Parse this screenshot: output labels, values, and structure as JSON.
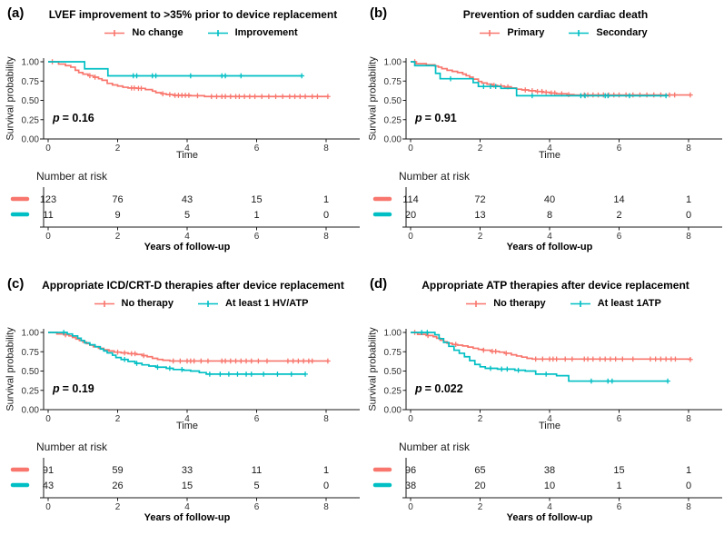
{
  "figure": {
    "background": "#ffffff",
    "axis_color": "#1a1a1a",
    "tick_text_color": "#333333"
  },
  "chart_data": [
    {
      "type": "line",
      "subtype": "kaplan-meier-survival",
      "tag": "(a)",
      "title": "LVEF improvement to >35% prior to device replacement",
      "p_label": "p",
      "p_value": "= 0.16",
      "xlabel": "Time",
      "ylabel": "Survival probability",
      "risk_header": "Number at risk",
      "risk_xlabel": "Years of follow-up",
      "x_ticks": [
        0,
        2,
        4,
        6,
        8
      ],
      "y_ticks": [
        1,
        0.75,
        0.5,
        0.25,
        0
      ],
      "xlim": [
        0,
        8.3
      ],
      "ylim": [
        0,
        1
      ],
      "series": [
        {
          "name": "No change",
          "color": "#F8766D",
          "steps": [
            [
              0,
              1
            ],
            [
              0.3,
              0.97
            ],
            [
              0.5,
              0.95
            ],
            [
              0.65,
              0.93
            ],
            [
              0.78,
              0.89
            ],
            [
              0.88,
              0.86
            ],
            [
              1.0,
              0.84
            ],
            [
              1.15,
              0.82
            ],
            [
              1.3,
              0.8
            ],
            [
              1.45,
              0.78
            ],
            [
              1.55,
              0.76
            ],
            [
              1.7,
              0.72
            ],
            [
              1.85,
              0.7
            ],
            [
              2.0,
              0.685
            ],
            [
              2.15,
              0.67
            ],
            [
              2.3,
              0.66
            ],
            [
              2.55,
              0.655
            ],
            [
              2.8,
              0.64
            ],
            [
              3.0,
              0.62
            ],
            [
              3.1,
              0.6
            ],
            [
              3.25,
              0.585
            ],
            [
              3.4,
              0.575
            ],
            [
              3.6,
              0.565
            ],
            [
              4.1,
              0.56
            ],
            [
              4.5,
              0.55
            ],
            [
              8.05,
              0.55
            ]
          ],
          "censors": [
            0.12,
            1.2,
            1.35,
            2.4,
            2.48,
            2.6,
            2.68,
            3.3,
            3.5,
            3.65,
            3.75,
            3.85,
            3.95,
            4.05,
            4.3,
            4.7,
            4.85,
            5.0,
            5.1,
            5.25,
            5.4,
            5.5,
            5.65,
            5.8,
            5.95,
            6.15,
            6.35,
            6.55,
            6.75,
            6.95,
            7.1,
            7.25,
            7.4,
            7.6,
            7.75,
            8.05
          ],
          "number_at_risk": [
            123,
            76,
            43,
            15,
            1
          ]
        },
        {
          "name": "Improvement",
          "color": "#00BFC4",
          "steps": [
            [
              0,
              1
            ],
            [
              1.05,
              0.909
            ],
            [
              1.72,
              0.818
            ],
            [
              7.3,
              0.818
            ]
          ],
          "censors": [
            2.45,
            2.55,
            3.0,
            3.1,
            4.1,
            5.0,
            5.1,
            5.55,
            7.3
          ],
          "number_at_risk": [
            11,
            9,
            5,
            1,
            0
          ]
        }
      ]
    },
    {
      "type": "line",
      "subtype": "kaplan-meier-survival",
      "tag": "(b)",
      "title": "Prevention of sudden cardiac death",
      "p_label": "p",
      "p_value": "= 0.91",
      "xlabel": "Time",
      "ylabel": "Survival probability",
      "risk_header": "Number at risk",
      "risk_xlabel": "Years of follow-up",
      "x_ticks": [
        0,
        2,
        4,
        6,
        8
      ],
      "y_ticks": [
        1,
        0.75,
        0.5,
        0.25,
        0
      ],
      "xlim": [
        0,
        8.3
      ],
      "ylim": [
        0,
        1
      ],
      "series": [
        {
          "name": "Primary",
          "color": "#F8766D",
          "steps": [
            [
              0,
              1
            ],
            [
              0.15,
              0.975
            ],
            [
              0.45,
              0.96
            ],
            [
              0.7,
              0.945
            ],
            [
              0.8,
              0.93
            ],
            [
              0.9,
              0.91
            ],
            [
              1.05,
              0.89
            ],
            [
              1.2,
              0.875
            ],
            [
              1.35,
              0.86
            ],
            [
              1.5,
              0.84
            ],
            [
              1.6,
              0.82
            ],
            [
              1.7,
              0.8
            ],
            [
              1.8,
              0.775
            ],
            [
              1.95,
              0.745
            ],
            [
              2.05,
              0.725
            ],
            [
              2.2,
              0.71
            ],
            [
              2.35,
              0.695
            ],
            [
              2.5,
              0.685
            ],
            [
              2.7,
              0.675
            ],
            [
              2.9,
              0.66
            ],
            [
              3.05,
              0.645
            ],
            [
              3.2,
              0.635
            ],
            [
              3.4,
              0.625
            ],
            [
              3.6,
              0.615
            ],
            [
              3.8,
              0.605
            ],
            [
              4.0,
              0.595
            ],
            [
              4.2,
              0.585
            ],
            [
              4.5,
              0.575
            ],
            [
              4.7,
              0.57
            ],
            [
              8.05,
              0.57
            ]
          ],
          "censors": [
            0.12,
            2.4,
            2.6,
            2.8,
            3.3,
            3.5,
            3.65,
            3.78,
            3.9,
            4.05,
            4.15,
            4.35,
            4.55,
            5.0,
            5.1,
            5.25,
            5.4,
            5.55,
            5.7,
            5.85,
            6.0,
            6.2,
            6.4,
            6.6,
            6.8,
            7.0,
            7.2,
            7.45,
            7.6,
            8.05
          ],
          "number_at_risk": [
            114,
            72,
            40,
            14,
            1
          ]
        },
        {
          "name": "Secondary",
          "color": "#00BFC4",
          "steps": [
            [
              0,
              1
            ],
            [
              0.12,
              0.95
            ],
            [
              0.72,
              0.85
            ],
            [
              0.85,
              0.78
            ],
            [
              1.8,
              0.73
            ],
            [
              1.95,
              0.68
            ],
            [
              2.6,
              0.655
            ],
            [
              3.05,
              0.56
            ],
            [
              7.35,
              0.56
            ]
          ],
          "censors": [
            1.15,
            2.1,
            2.3,
            2.45,
            3.5,
            4.9,
            5.02,
            5.6,
            5.68,
            6.3,
            7.35
          ],
          "number_at_risk": [
            20,
            13,
            8,
            2,
            0
          ]
        }
      ]
    },
    {
      "type": "line",
      "subtype": "kaplan-meier-survival",
      "tag": "(c)",
      "title": "Appropriate ICD/CRT-D therapies after device replacement",
      "p_label": "p",
      "p_value": "= 0.19",
      "xlabel": "Time",
      "ylabel": "Survival probability",
      "risk_header": "Number at risk",
      "risk_xlabel": "Years of follow-up",
      "x_ticks": [
        0,
        2,
        4,
        6,
        8
      ],
      "y_ticks": [
        1,
        0.75,
        0.5,
        0.25,
        0
      ],
      "xlim": [
        0,
        8.3
      ],
      "ylim": [
        0,
        1
      ],
      "series": [
        {
          "name": "No therapy",
          "color": "#F8766D",
          "steps": [
            [
              0,
              1
            ],
            [
              0.25,
              0.98
            ],
            [
              0.45,
              0.97
            ],
            [
              0.6,
              0.955
            ],
            [
              0.7,
              0.935
            ],
            [
              0.8,
              0.915
            ],
            [
              0.9,
              0.895
            ],
            [
              1.0,
              0.875
            ],
            [
              1.1,
              0.855
            ],
            [
              1.2,
              0.835
            ],
            [
              1.3,
              0.815
            ],
            [
              1.45,
              0.795
            ],
            [
              1.6,
              0.775
            ],
            [
              1.75,
              0.76
            ],
            [
              1.9,
              0.745
            ],
            [
              2.1,
              0.735
            ],
            [
              2.3,
              0.725
            ],
            [
              2.55,
              0.715
            ],
            [
              2.7,
              0.7
            ],
            [
              2.85,
              0.685
            ],
            [
              3.0,
              0.665
            ],
            [
              3.15,
              0.65
            ],
            [
              3.3,
              0.64
            ],
            [
              3.5,
              0.63
            ],
            [
              8.05,
              0.63
            ]
          ],
          "censors": [
            0.5,
            2.0,
            2.2,
            2.4,
            2.5,
            2.75,
            3.6,
            3.8,
            4.0,
            4.1,
            4.2,
            4.4,
            4.6,
            5.0,
            5.1,
            5.25,
            5.4,
            5.55,
            5.7,
            5.85,
            6.05,
            6.3,
            6.9,
            7.05,
            7.2,
            7.35,
            7.5,
            7.6,
            8.05
          ],
          "number_at_risk": [
            91,
            59,
            33,
            11,
            1
          ]
        },
        {
          "name": "At least 1 HV/ATP",
          "color": "#00BFC4",
          "steps": [
            [
              0,
              1
            ],
            [
              0.55,
              0.98
            ],
            [
              0.7,
              0.955
            ],
            [
              0.85,
              0.925
            ],
            [
              0.95,
              0.895
            ],
            [
              1.05,
              0.865
            ],
            [
              1.2,
              0.84
            ],
            [
              1.35,
              0.815
            ],
            [
              1.5,
              0.785
            ],
            [
              1.6,
              0.76
            ],
            [
              1.7,
              0.735
            ],
            [
              1.85,
              0.705
            ],
            [
              1.95,
              0.675
            ],
            [
              2.1,
              0.65
            ],
            [
              2.3,
              0.625
            ],
            [
              2.5,
              0.6
            ],
            [
              2.7,
              0.58
            ],
            [
              2.9,
              0.565
            ],
            [
              3.1,
              0.55
            ],
            [
              3.4,
              0.535
            ],
            [
              3.6,
              0.52
            ],
            [
              3.9,
              0.51
            ],
            [
              4.1,
              0.5
            ],
            [
              4.35,
              0.48
            ],
            [
              4.55,
              0.46
            ],
            [
              7.4,
              0.46
            ]
          ],
          "censors": [
            0.45,
            2.2,
            2.55,
            3.15,
            3.5,
            3.85,
            4.65,
            4.95,
            5.2,
            5.45,
            5.7,
            5.85,
            6.2,
            6.6,
            7.0,
            7.4
          ],
          "number_at_risk": [
            43,
            26,
            15,
            5,
            0
          ]
        }
      ]
    },
    {
      "type": "line",
      "subtype": "kaplan-meier-survival",
      "tag": "(d)",
      "title": "Appropriate ATP therapies after device replacement",
      "p_label": "p",
      "p_value": "= 0.022",
      "xlabel": "Time",
      "ylabel": "Survival probability",
      "risk_header": "Number at risk",
      "risk_xlabel": "Years of follow-up",
      "x_ticks": [
        0,
        2,
        4,
        6,
        8
      ],
      "y_ticks": [
        1,
        0.75,
        0.5,
        0.25,
        0
      ],
      "xlim": [
        0,
        8.3
      ],
      "ylim": [
        0,
        1
      ],
      "series": [
        {
          "name": "No therapy",
          "color": "#F8766D",
          "steps": [
            [
              0,
              1
            ],
            [
              0.2,
              0.975
            ],
            [
              0.45,
              0.96
            ],
            [
              0.65,
              0.945
            ],
            [
              0.75,
              0.925
            ],
            [
              0.85,
              0.9
            ],
            [
              0.95,
              0.88
            ],
            [
              1.05,
              0.86
            ],
            [
              1.2,
              0.845
            ],
            [
              1.35,
              0.835
            ],
            [
              1.5,
              0.825
            ],
            [
              1.65,
              0.81
            ],
            [
              1.8,
              0.795
            ],
            [
              1.95,
              0.78
            ],
            [
              2.1,
              0.77
            ],
            [
              2.3,
              0.755
            ],
            [
              2.55,
              0.745
            ],
            [
              2.7,
              0.73
            ],
            [
              2.9,
              0.71
            ],
            [
              3.05,
              0.695
            ],
            [
              3.2,
              0.68
            ],
            [
              3.35,
              0.665
            ],
            [
              3.5,
              0.655
            ],
            [
              8.05,
              0.65
            ]
          ],
          "censors": [
            0.12,
            0.5,
            1.3,
            2.1,
            2.35,
            2.45,
            2.75,
            3.6,
            3.8,
            4.0,
            4.1,
            4.2,
            4.45,
            4.65,
            5.0,
            5.1,
            5.25,
            5.45,
            5.6,
            5.75,
            5.9,
            6.1,
            6.4,
            6.9,
            7.05,
            7.2,
            7.35,
            7.5,
            7.62,
            8.05
          ],
          "number_at_risk": [
            96,
            65,
            38,
            15,
            1
          ]
        },
        {
          "name": "At least 1ATP",
          "color": "#00BFC4",
          "steps": [
            [
              0,
              1
            ],
            [
              0.7,
              0.97
            ],
            [
              0.82,
              0.92
            ],
            [
              0.95,
              0.87
            ],
            [
              1.1,
              0.82
            ],
            [
              1.25,
              0.77
            ],
            [
              1.4,
              0.73
            ],
            [
              1.55,
              0.685
            ],
            [
              1.7,
              0.635
            ],
            [
              1.85,
              0.585
            ],
            [
              2.0,
              0.555
            ],
            [
              2.15,
              0.535
            ],
            [
              2.5,
              0.525
            ],
            [
              3.0,
              0.51
            ],
            [
              3.3,
              0.5
            ],
            [
              3.6,
              0.46
            ],
            [
              4.2,
              0.44
            ],
            [
              4.55,
              0.37
            ],
            [
              7.4,
              0.37
            ]
          ],
          "censors": [
            0.32,
            0.48,
            2.3,
            2.62,
            2.78,
            3.1,
            3.9,
            5.2,
            5.68,
            5.8,
            7.4
          ],
          "number_at_risk": [
            38,
            20,
            10,
            1,
            0
          ]
        }
      ]
    }
  ]
}
